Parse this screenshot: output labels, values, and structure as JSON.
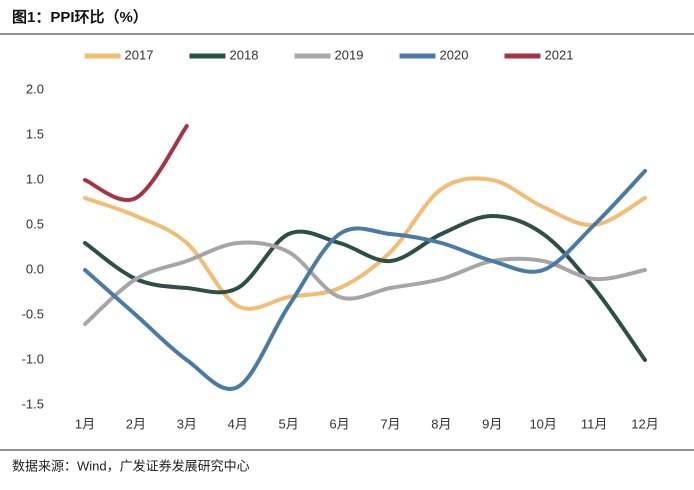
{
  "chart_data": {
    "type": "line",
    "title": "图1：PPI环比（%）",
    "source": "数据来源：Wind，广发证券发展研究中心",
    "categories": [
      "1月",
      "2月",
      "3月",
      "4月",
      "5月",
      "6月",
      "7月",
      "8月",
      "9月",
      "10月",
      "11月",
      "12月"
    ],
    "series": [
      {
        "name": "2017",
        "color": "#f3bc73",
        "values": [
          0.8,
          0.6,
          0.3,
          -0.4,
          -0.3,
          -0.2,
          0.2,
          0.9,
          1.0,
          0.7,
          0.5,
          0.8
        ]
      },
      {
        "name": "2018",
        "color": "#2d4f48",
        "values": [
          0.3,
          -0.1,
          -0.2,
          -0.2,
          0.4,
          0.3,
          0.1,
          0.4,
          0.6,
          0.4,
          -0.2,
          -1.0
        ]
      },
      {
        "name": "2019",
        "color": "#a6a6a6",
        "values": [
          -0.6,
          -0.1,
          0.1,
          0.3,
          0.2,
          -0.3,
          -0.2,
          -0.1,
          0.1,
          0.1,
          -0.1,
          0.0
        ]
      },
      {
        "name": "2020",
        "color": "#4a7aa6",
        "values": [
          0.0,
          -0.5,
          -1.0,
          -1.3,
          -0.4,
          0.4,
          0.4,
          0.3,
          0.1,
          0.0,
          0.5,
          1.1
        ]
      },
      {
        "name": "2021",
        "color": "#a33545",
        "values": [
          1.0,
          0.8,
          1.6,
          null,
          null,
          null,
          null,
          null,
          null,
          null,
          null,
          null
        ]
      }
    ],
    "ylim": [
      -1.5,
      2.0
    ],
    "yticks": [
      {
        "value": 2,
        "label": "2.0"
      },
      {
        "value": 1.5,
        "label": "1.5"
      },
      {
        "value": 1,
        "label": "1.0"
      },
      0.5,
      {
        "value": 0,
        "label": "0.0"
      },
      -0.5,
      {
        "value": -1,
        "label": "-1.0"
      },
      {
        "value": -1.5,
        "label": "-1.5"
      }
    ],
    "smooth": true,
    "grid": false,
    "legend": "top"
  }
}
